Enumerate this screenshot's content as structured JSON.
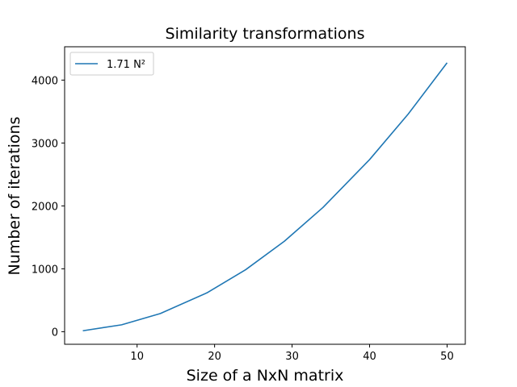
{
  "chart_data": {
    "type": "line",
    "title": "Similarity transformations",
    "xlabel": "Size of a NxN matrix",
    "ylabel": "Number of iterations",
    "xlim": [
      0.65,
      52.35
    ],
    "ylim": [
      -200,
      4530
    ],
    "x_ticks": [
      10,
      20,
      30,
      40,
      50
    ],
    "y_ticks": [
      0,
      1000,
      2000,
      3000,
      4000
    ],
    "grid": false,
    "legend_position": "top-left",
    "series": [
      {
        "name": "1.71 N²",
        "color": "#1f77b4",
        "x": [
          3,
          8,
          13,
          19,
          24,
          29,
          34,
          40,
          45,
          50
        ],
        "y": [
          15,
          109,
          289,
          617,
          985,
          1438,
          1977,
          2736,
          3463,
          4275
        ]
      }
    ]
  }
}
